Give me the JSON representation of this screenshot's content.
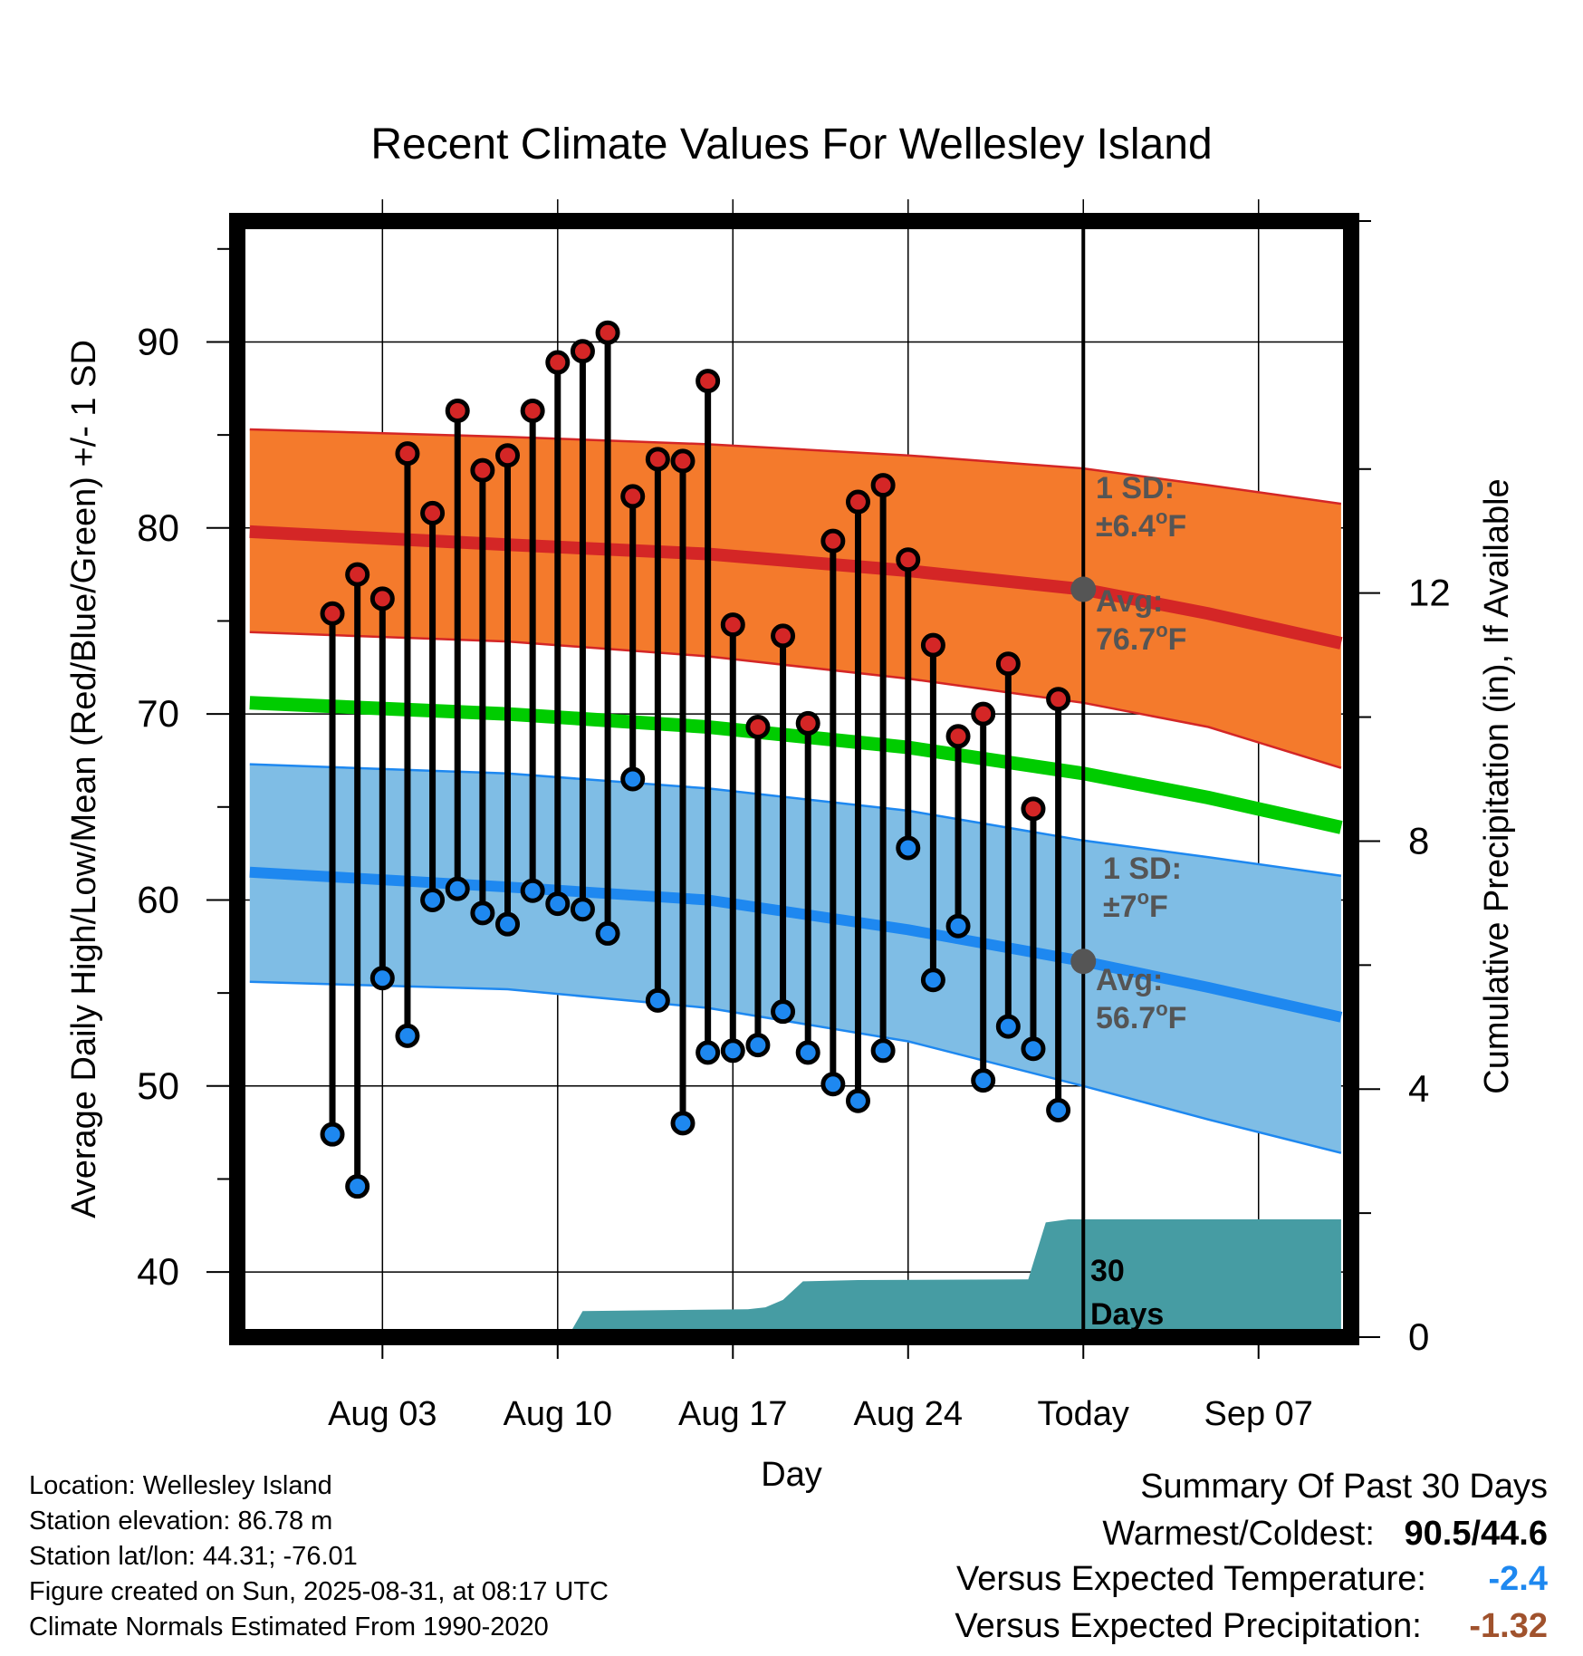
{
  "chart_data": {
    "type": "line",
    "title": "Recent Climate Values For Wellesley Island",
    "xlabel": "Day",
    "ylabel": "Average Daily High/Low/Mean (Red/Blue/Green) +/- 1 SD",
    "y2label": "Cumulative Precipitation (in), If Available",
    "xlim": [
      -2.8,
      41.7
    ],
    "ylim": [
      36.5,
      96.5
    ],
    "y2lim": [
      0,
      18
    ],
    "x_ticks": [
      {
        "x": 3,
        "label": "Aug 03"
      },
      {
        "x": 10,
        "label": "Aug 10"
      },
      {
        "x": 17,
        "label": "Aug 17"
      },
      {
        "x": 24,
        "label": "Aug 24"
      },
      {
        "x": 31,
        "label": "Today"
      },
      {
        "x": 38,
        "label": "Sep 07"
      }
    ],
    "y_ticks": [
      40,
      50,
      60,
      70,
      80,
      90
    ],
    "y2_ticks": [
      0,
      4,
      8,
      12
    ],
    "grid": true,
    "today_x": 31,
    "observed": {
      "days": [
        1,
        2,
        3,
        4,
        5,
        6,
        7,
        8,
        9,
        10,
        11,
        12,
        13,
        14,
        15,
        16,
        17,
        18,
        19,
        20,
        21,
        22,
        23,
        24,
        25,
        26,
        27,
        28,
        29,
        30
      ],
      "high": [
        75.4,
        77.5,
        76.2,
        84.0,
        80.8,
        86.3,
        83.1,
        83.9,
        86.3,
        88.9,
        89.5,
        90.5,
        81.7,
        83.7,
        83.6,
        87.9,
        74.8,
        69.3,
        74.2,
        69.5,
        79.3,
        81.4,
        82.3,
        78.3,
        73.7,
        68.8,
        70.0,
        72.7,
        64.9,
        70.8
      ],
      "low": [
        47.4,
        44.6,
        55.8,
        52.7,
        60.0,
        60.6,
        59.3,
        58.7,
        60.5,
        59.8,
        59.5,
        58.2,
        66.5,
        54.6,
        48.0,
        51.8,
        51.9,
        52.2,
        54.0,
        51.8,
        50.1,
        49.2,
        51.9,
        62.8,
        55.7,
        58.6,
        50.3,
        53.2,
        52.0,
        48.7
      ]
    },
    "normals": {
      "x": [
        -2.3,
        8,
        16,
        24,
        31,
        36,
        41.3
      ],
      "high_avg": [
        79.8,
        79.1,
        78.6,
        77.7,
        76.7,
        75.4,
        73.8
      ],
      "high_upper": [
        85.3,
        84.9,
        84.5,
        83.9,
        83.2,
        82.3,
        81.3
      ],
      "high_lower": [
        74.4,
        73.9,
        73.1,
        71.9,
        70.6,
        69.3,
        67.1
      ],
      "mean": [
        70.6,
        70.0,
        69.3,
        68.2,
        66.8,
        65.5,
        63.9
      ],
      "low_avg": [
        61.5,
        60.7,
        60.0,
        58.4,
        56.7,
        55.3,
        53.7
      ],
      "low_upper": [
        67.3,
        66.8,
        66.0,
        64.8,
        63.2,
        62.3,
        61.3
      ],
      "low_lower": [
        55.6,
        55.2,
        54.2,
        52.4,
        50.0,
        48.2,
        46.4
      ]
    },
    "precipitation": {
      "x": [
        10.4,
        11.0,
        17.6,
        18.3,
        19.0,
        19.8,
        22.0,
        28.8,
        29.5,
        30.4,
        41.3
      ],
      "y": [
        0.0,
        0.42,
        0.45,
        0.48,
        0.6,
        0.9,
        0.92,
        0.93,
        1.85,
        1.9,
        1.9
      ]
    },
    "annotations": {
      "high_sd_label": "1 SD:",
      "high_sd_value": "±6.4",
      "high_sd_unit": "F",
      "high_avg_label": "Avg:",
      "high_avg_value": "76.7",
      "high_avg_unit": "F",
      "low_sd_label": "1 SD:",
      "low_sd_value": "±7",
      "low_sd_unit": "F",
      "low_avg_label": "Avg:",
      "low_avg_value": "56.7",
      "low_avg_unit": "F",
      "degree_symbol": "o",
      "precip_days_line1": "30",
      "precip_days_line2": "Days"
    },
    "colors": {
      "high_band": "#f47a2c",
      "high_avg": "#d42626",
      "high_band_edge": "#d42626",
      "mean_line": "#00cc00",
      "low_band": "#7fbde5",
      "low_avg": "#1e88f0",
      "low_band_edge": "#1e88f0",
      "precip_fill": "#469ca3",
      "high_marker": "#d42626",
      "low_marker": "#1e88f0",
      "annotation_text": "#555555",
      "today_marker": "#555555"
    }
  },
  "metadata": {
    "location": "Location: Wellesley Island",
    "elevation": "Station elevation: 86.78 m",
    "latlon": "Station lat/lon: 44.31; -76.01",
    "created": "Figure created on Sun, 2025-08-31, at 08:17 UTC",
    "normals_note": "Climate Normals Estimated From 1990-2020"
  },
  "summary": {
    "title": "Summary Of Past 30 Days",
    "warmest_coldest_label": "Warmest/Coldest:",
    "warmest_coldest_value": "90.5/44.6",
    "temp_label": "Versus Expected Temperature:",
    "temp_value": "-2.4",
    "temp_color": "#1e88f0",
    "precip_label": "Versus Expected Precipitation:",
    "precip_value": "-1.32",
    "precip_color": "#a0522d"
  }
}
